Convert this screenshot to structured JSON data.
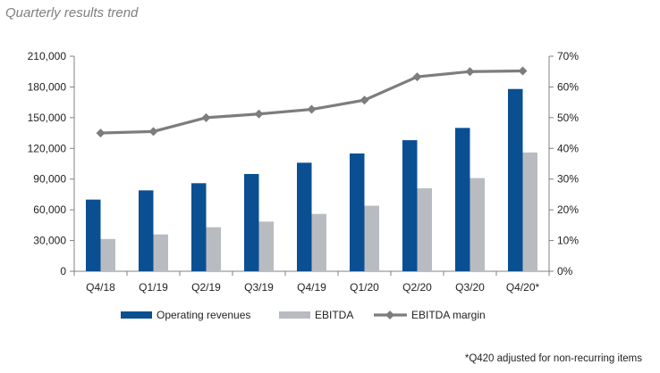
{
  "title": "Quarterly results trend",
  "footnote": "*Q420 adjusted for non-recurring items",
  "colors": {
    "revenues": "#0b4f93",
    "ebitda": "#b8bcc0",
    "margin": "#7d7d7d",
    "axis": "#808080",
    "text": "#222222"
  },
  "chart_data": {
    "type": "bar",
    "title": "",
    "categories": [
      "Q4/18",
      "Q1/19",
      "Q2/19",
      "Q3/19",
      "Q4/19",
      "Q1/20",
      "Q2/20",
      "Q3/20",
      "Q4/20*"
    ],
    "series": [
      {
        "name": "Operating revenues",
        "type": "bar",
        "axis": "left",
        "values": [
          70000,
          79000,
          86000,
          95000,
          106000,
          115000,
          128000,
          140000,
          178000
        ]
      },
      {
        "name": "EBITDA",
        "type": "bar",
        "axis": "left",
        "values": [
          31500,
          36000,
          43000,
          48500,
          56000,
          64000,
          81000,
          91000,
          116000
        ]
      },
      {
        "name": "EBITDA margin",
        "type": "line",
        "axis": "right",
        "values": [
          0.45,
          0.455,
          0.5,
          0.512,
          0.527,
          0.557,
          0.633,
          0.65,
          0.652
        ]
      }
    ],
    "left_axis": {
      "ylim": [
        0,
        210000
      ],
      "ticks": [
        "0",
        "30,000",
        "60,000",
        "90,000",
        "120,000",
        "150,000",
        "180,000",
        "210,000"
      ]
    },
    "right_axis": {
      "ylim": [
        0,
        0.7
      ],
      "ticks": [
        "0%",
        "10%",
        "20%",
        "30%",
        "40%",
        "50%",
        "60%",
        "70%"
      ]
    },
    "grid": false,
    "legend": "bottom"
  }
}
